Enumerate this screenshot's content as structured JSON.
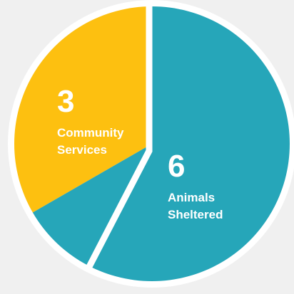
{
  "chart_data": {
    "type": "pie",
    "slices": [
      {
        "value": 3,
        "value_text": "3",
        "label_lines": [
          "Community",
          "Services"
        ],
        "color": "#fdc010"
      },
      {
        "value": 6,
        "value_text": "6",
        "label_lines": [
          "Animals",
          "Sheltered"
        ],
        "color": "#26a6b9"
      }
    ],
    "background_color": "#f0f0f0",
    "border_color": "#ffffff"
  }
}
